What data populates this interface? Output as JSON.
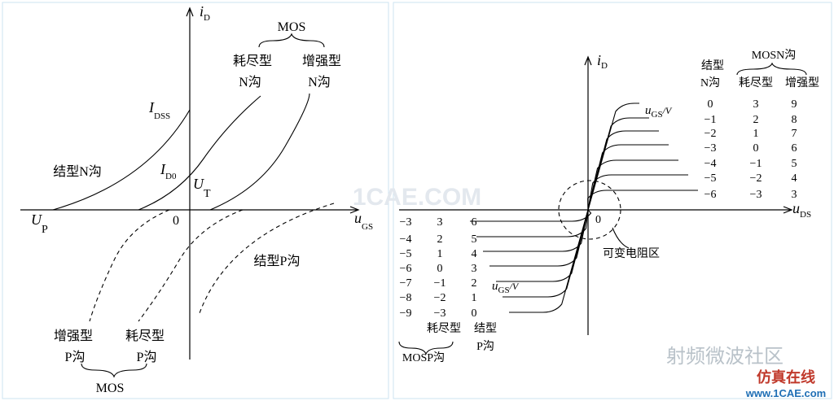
{
  "left": {
    "y_axis": {
      "main": "i",
      "sub": "D"
    },
    "x_axis": {
      "main": "u",
      "sub": "GS"
    },
    "origin": "0",
    "top_group": "MOS",
    "n_depletion": {
      "type": "耗尽型",
      "channel": "N沟"
    },
    "n_enhancement": {
      "type": "增强型",
      "channel": "N沟"
    },
    "idss": {
      "main": "I",
      "sub": "DSS"
    },
    "id0": {
      "main": "I",
      "sub": "D0"
    },
    "ut": {
      "main": "U",
      "sub": "T"
    },
    "up": {
      "main": "U",
      "sub": "P"
    },
    "jfet_n": "结型N沟",
    "jfet_p": "结型P沟",
    "p_enhancement": {
      "type": "增强型",
      "channel": "P沟"
    },
    "p_depletion": {
      "type": "耗尽型",
      "channel": "P沟"
    },
    "bottom_group": "MOS"
  },
  "right": {
    "y_axis": {
      "main": "i",
      "sub": "D"
    },
    "x_axis": {
      "main": "u",
      "sub": "DS"
    },
    "origin": "0",
    "n_header": {
      "jfet": "结型",
      "jfet_channel": "N沟",
      "mos": "MOSN沟",
      "depletion": "耗尽型",
      "enhancement": "增强型"
    },
    "ugs_top": {
      "main": "u",
      "sub": "GS",
      "unit": "/V"
    },
    "n_rows": [
      [
        "0",
        "3",
        "9"
      ],
      [
        "−1",
        "2",
        "8"
      ],
      [
        "−2",
        "1",
        "7"
      ],
      [
        "−3",
        "0",
        "6"
      ],
      [
        "−4",
        "−1",
        "5"
      ],
      [
        "−5",
        "−2",
        "4"
      ],
      [
        "−6",
        "−3",
        "3"
      ]
    ],
    "p_rows": [
      [
        "−3",
        "3",
        "6"
      ],
      [
        "−4",
        "2",
        "5"
      ],
      [
        "−5",
        "1",
        "4"
      ],
      [
        "−6",
        "0",
        "3"
      ],
      [
        "−7",
        "−1",
        "2"
      ],
      [
        "−8",
        "−2",
        "1"
      ],
      [
        "−9",
        "−3",
        "0"
      ]
    ],
    "ugs_bottom": {
      "main": "u",
      "sub": "GS",
      "unit": "/V"
    },
    "p_header": {
      "depletion": "耗尽型",
      "jfet": "结型",
      "jfet_channel": "P沟",
      "mos": "MOSP沟"
    },
    "region": "可变电阻区"
  },
  "watermark": {
    "center": "1CAE.COM",
    "brand": "射频微波社区",
    "site_cn": "仿真在线",
    "site": "www.1CAE.com"
  }
}
